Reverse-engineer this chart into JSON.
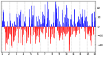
{
  "n_days": 365,
  "seed": 42,
  "blue_color": "#1a1aff",
  "red_color": "#ff1a1a",
  "bg_color": "#ffffff",
  "grid_color": "#999999",
  "ylim": [
    -55,
    55
  ],
  "yticks": [
    -40,
    -20,
    0,
    20,
    40
  ],
  "ylabel_fontsize": 3.0,
  "xlabel_fontsize": 2.5,
  "linewidth": 0.5,
  "n_gridlines": 13,
  "figwidth": 1.6,
  "figheight": 0.87,
  "dpi": 100
}
